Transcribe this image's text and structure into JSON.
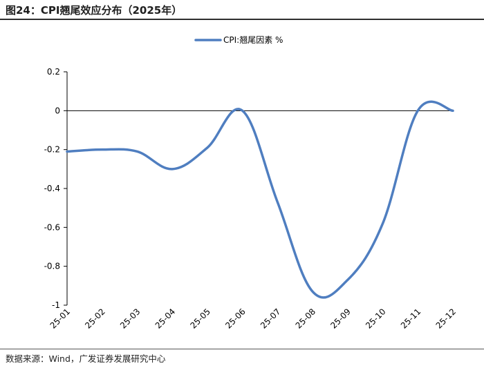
{
  "title": "图24：CPI翘尾效应分布（2025年）",
  "source": "数据来源：Wind，广发证券发展研究中心",
  "colors": {
    "series": "#4f7ec0",
    "axis": "#000000"
  },
  "chart_data": {
    "type": "line",
    "title": "图24：CPI翘尾效应分布（2025年）",
    "legend_position": "top-center",
    "grid": false,
    "categories": [
      "25-01",
      "25-02",
      "25-03",
      "25-04",
      "25-05",
      "25-06",
      "25-07",
      "25-08",
      "25-09",
      "25-10",
      "25-11",
      "25-12"
    ],
    "yticks": [
      "0.2",
      "0",
      "-0.2",
      "-0.4",
      "-0.6",
      "-0.8",
      "-1"
    ],
    "ylim": [
      -1,
      0.2
    ],
    "series": [
      {
        "name": "CPI:翘尾因素 %",
        "values": [
          -0.21,
          -0.2,
          -0.21,
          -0.3,
          -0.19,
          0.0,
          -0.47,
          -0.93,
          -0.87,
          -0.58,
          0.0,
          0.0
        ]
      }
    ]
  }
}
